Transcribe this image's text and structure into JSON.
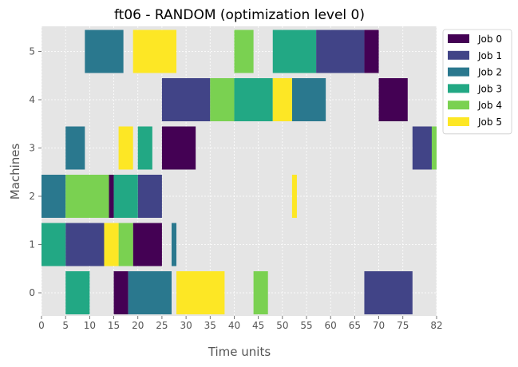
{
  "chart_data": {
    "type": "gantt",
    "title": "ft06 - RANDOM (optimization level 0)",
    "xlabel": "Time units",
    "ylabel": "Machines",
    "xlim": [
      0,
      82
    ],
    "x_ticks": [
      0,
      5,
      10,
      15,
      20,
      25,
      30,
      35,
      40,
      45,
      50,
      55,
      60,
      65,
      70,
      75,
      82
    ],
    "x_tick_labels": [
      "0",
      "5",
      "10",
      "15",
      "20",
      "25",
      "30",
      "35",
      "40",
      "45",
      "50",
      "55",
      "60",
      "65",
      "70",
      "75",
      "82"
    ],
    "machines": [
      0,
      1,
      2,
      3,
      4,
      5
    ],
    "machine_labels": [
      "0",
      "1",
      "2",
      "3",
      "4",
      "5"
    ],
    "grid": true,
    "legend_position": "upper right, outside plot",
    "colors": {
      "background": "#E5E5E5",
      "grid": "#FFFFFF",
      "Job 0": "#440154",
      "Job 1": "#414487",
      "Job 2": "#2A788E",
      "Job 3": "#22A884",
      "Job 4": "#7AD151",
      "Job 5": "#FDE725"
    },
    "series": [
      {
        "name": "Job 0",
        "color": "#440154",
        "tasks": [
          {
            "machine": 0,
            "start": 15,
            "end": 18
          },
          {
            "machine": 1,
            "start": 19,
            "end": 25
          },
          {
            "machine": 2,
            "start": 14,
            "end": 15
          },
          {
            "machine": 3,
            "start": 25,
            "end": 32
          },
          {
            "machine": 4,
            "start": 70,
            "end": 76
          },
          {
            "machine": 5,
            "start": 67,
            "end": 70
          }
        ]
      },
      {
        "name": "Job 1",
        "color": "#414487",
        "tasks": [
          {
            "machine": 0,
            "start": 67,
            "end": 77
          },
          {
            "machine": 1,
            "start": 5,
            "end": 13
          },
          {
            "machine": 2,
            "start": 20,
            "end": 25
          },
          {
            "machine": 3,
            "start": 77,
            "end": 81
          },
          {
            "machine": 4,
            "start": 25,
            "end": 35
          },
          {
            "machine": 5,
            "start": 57,
            "end": 67
          }
        ]
      },
      {
        "name": "Job 2",
        "color": "#2A788E",
        "tasks": [
          {
            "machine": 0,
            "start": 18,
            "end": 27
          },
          {
            "machine": 1,
            "start": 27,
            "end": 28
          },
          {
            "machine": 2,
            "start": 0,
            "end": 5
          },
          {
            "machine": 3,
            "start": 5,
            "end": 9
          },
          {
            "machine": 4,
            "start": 52,
            "end": 59
          },
          {
            "machine": 5,
            "start": 9,
            "end": 17
          }
        ]
      },
      {
        "name": "Job 3",
        "color": "#22A884",
        "tasks": [
          {
            "machine": 0,
            "start": 5,
            "end": 10
          },
          {
            "machine": 1,
            "start": 0,
            "end": 5
          },
          {
            "machine": 2,
            "start": 15,
            "end": 20
          },
          {
            "machine": 3,
            "start": 20,
            "end": 23
          },
          {
            "machine": 4,
            "start": 40,
            "end": 48
          },
          {
            "machine": 5,
            "start": 48,
            "end": 57
          }
        ]
      },
      {
        "name": "Job 4",
        "color": "#7AD151",
        "tasks": [
          {
            "machine": 0,
            "start": 44,
            "end": 47
          },
          {
            "machine": 1,
            "start": 16,
            "end": 19
          },
          {
            "machine": 2,
            "start": 5,
            "end": 14
          },
          {
            "machine": 3,
            "start": 81,
            "end": 82
          },
          {
            "machine": 4,
            "start": 35,
            "end": 40
          },
          {
            "machine": 5,
            "start": 40,
            "end": 44
          }
        ]
      },
      {
        "name": "Job 5",
        "color": "#FDE725",
        "tasks": [
          {
            "machine": 0,
            "start": 28,
            "end": 38
          },
          {
            "machine": 1,
            "start": 13,
            "end": 16
          },
          {
            "machine": 2,
            "start": 52,
            "end": 53
          },
          {
            "machine": 3,
            "start": 16,
            "end": 19
          },
          {
            "machine": 4,
            "start": 48,
            "end": 52
          },
          {
            "machine": 5,
            "start": 19,
            "end": 28
          }
        ]
      }
    ]
  }
}
